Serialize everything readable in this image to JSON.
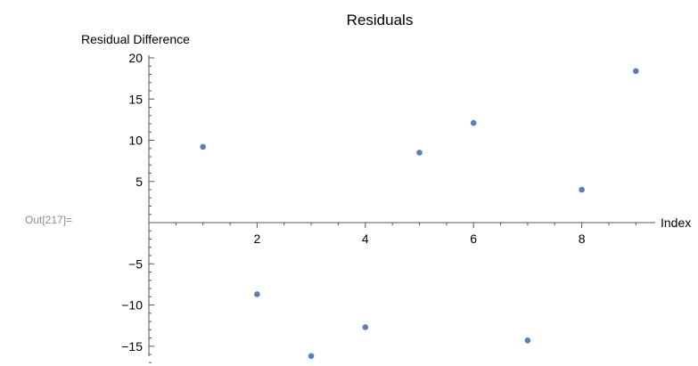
{
  "cell_label": "Out[217]=",
  "colors": {
    "point": "#5b80b6",
    "axis": "#555555",
    "cell_label": "#8c8c8c"
  },
  "chart_data": {
    "type": "scatter",
    "title": "Residuals",
    "xlabel": "Index",
    "ylabel": "Residual Difference",
    "xlim": [
      0,
      9.3
    ],
    "ylim": [
      -17,
      20.3
    ],
    "x_ticks": [
      2,
      4,
      6,
      8
    ],
    "y_ticks": [
      -15,
      -10,
      -5,
      5,
      10,
      15,
      20
    ],
    "x_tick_labels": [
      "2",
      "4",
      "6",
      "8"
    ],
    "y_tick_labels": [
      "−15",
      "−10",
      "−5",
      "5",
      "10",
      "15",
      "20"
    ],
    "grid": false,
    "series": [
      {
        "x": [
          1,
          2,
          3,
          4,
          5,
          6,
          7,
          8,
          9
        ],
        "y": [
          9.2,
          -8.7,
          -16.2,
          -12.7,
          8.5,
          12.1,
          -14.3,
          4.0,
          18.4
        ]
      }
    ]
  }
}
